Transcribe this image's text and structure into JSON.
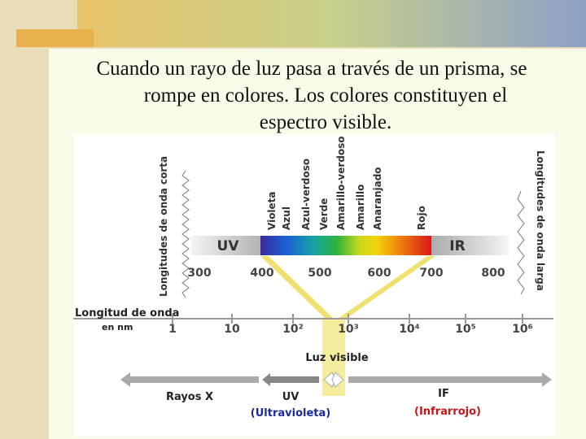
{
  "title": [
    "Cuando un rayo de luz pasa a través de un prisma, se",
    "rompe en colores. Los colores constituyen el",
    "espectro visible."
  ],
  "diagram": {
    "short_wave_label": "Longitudes de onda corta",
    "long_wave_label": "Longitudes de onda larga",
    "colors": [
      "Violeta",
      "Azul",
      "Azul-verdoso",
      "Verde",
      "Amarillo-verdoso",
      "Amarillo",
      "Anaranjado",
      "Rojo"
    ],
    "uv": "UV",
    "ir": "IR",
    "nm_ticks": [
      "300",
      "400",
      "500",
      "600",
      "700",
      "800"
    ],
    "axis_label": "Longitud de onda",
    "axis_unit": "en nm",
    "axis_ticks": [
      "1",
      "10",
      "10²",
      "10³",
      "10⁴",
      "10⁵",
      "10⁶"
    ],
    "visible_light": "Luz visible",
    "bands": [
      {
        "name": "Rayos X"
      },
      {
        "name": "UV",
        "note": "(Ultravioleta)"
      },
      {
        "name": "IF",
        "note": "(Infrarrojo)"
      }
    ]
  }
}
